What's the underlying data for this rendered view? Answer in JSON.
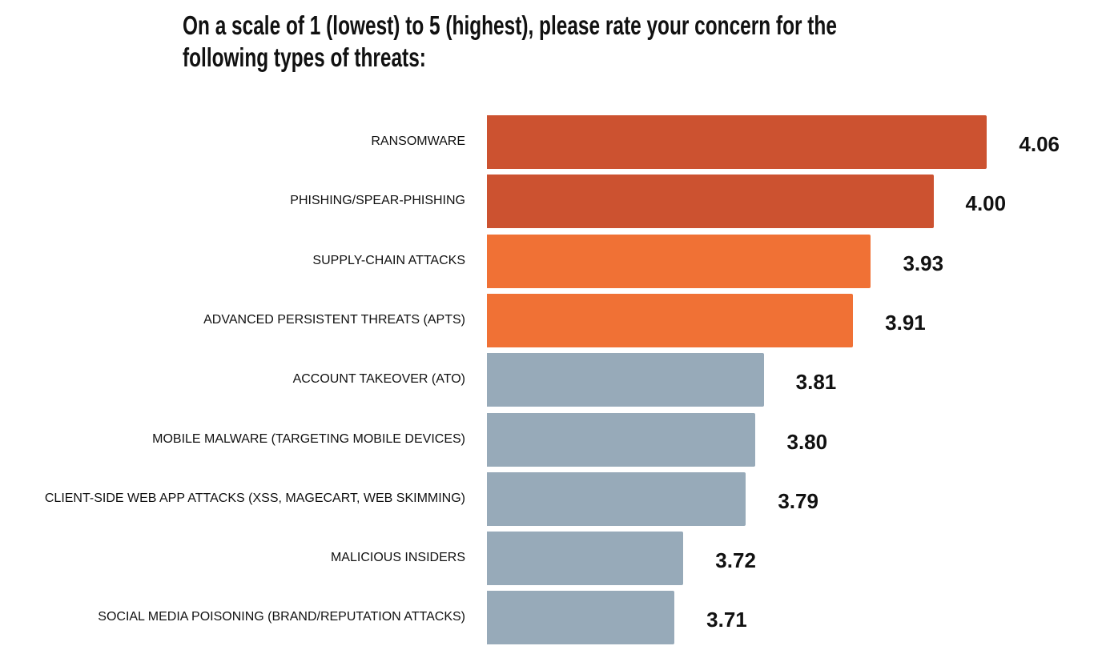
{
  "chart_data": {
    "type": "bar",
    "orientation": "horizontal",
    "title": [
      "On a scale of 1 (lowest) to 5 (highest), please rate your concern for the",
      "following types of threats:"
    ],
    "categories": [
      "RANSOMWARE",
      "PHISHING/SPEAR-PHISHING",
      "SUPPLY-CHAIN ATTACKS",
      "ADVANCED PERSISTENT THREATS (APTS)",
      "ACCOUNT TAKEOVER (ATO)",
      "MOBILE MALWARE (TARGETING MOBILE DEVICES)",
      "CLIENT-SIDE WEB APP ATTACKS (XSS, MAGECART, WEB SKIMMING)",
      "MALICIOUS INSIDERS",
      "SOCIAL MEDIA POISONING (BRAND/REPUTATION ATTACKS)"
    ],
    "values": [
      4.06,
      4.0,
      3.93,
      3.91,
      3.81,
      3.8,
      3.79,
      3.72,
      3.71
    ],
    "value_labels": [
      "4.06",
      "4.00",
      "3.93",
      "3.91",
      "3.81",
      "3.80",
      "3.79",
      "3.72",
      "3.71"
    ],
    "colors": [
      "#CC5230",
      "#CC5230",
      "#F07135",
      "#F07135",
      "#97AAB9",
      "#97AAB9",
      "#97AAB9",
      "#97AAB9",
      "#97AAB9"
    ],
    "grid": false,
    "legend": "none"
  }
}
